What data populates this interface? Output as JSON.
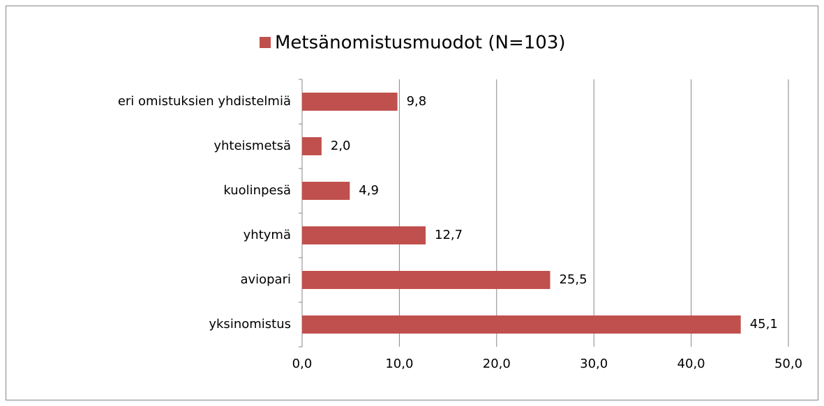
{
  "chart_data": {
    "type": "bar",
    "orientation": "horizontal",
    "categories": [
      "eri omistuksien yhdistelmiä",
      "yhteismetsä",
      "kuolinpesä",
      "yhtymä",
      "aviopari",
      "yksinomistus"
    ],
    "series": [
      {
        "name": "Metsänomistusmuodot (N=103)",
        "color": "#c0504d",
        "values": [
          9.8,
          2.0,
          4.9,
          12.7,
          25.5,
          45.1
        ],
        "value_labels": [
          "9,8",
          "2,0",
          "4,9",
          "12,7",
          "25,5",
          "45,1"
        ]
      }
    ],
    "xlim": [
      0,
      50
    ],
    "xticks": [
      {
        "value": 0,
        "label": "0,0"
      },
      {
        "value": 10,
        "label": "10,0"
      },
      {
        "value": 20,
        "label": "20,0"
      },
      {
        "value": 30,
        "label": "30,0"
      },
      {
        "value": 40,
        "label": "40,0"
      },
      {
        "value": 50,
        "label": "50,0"
      }
    ],
    "grid": true,
    "legend": "top"
  }
}
